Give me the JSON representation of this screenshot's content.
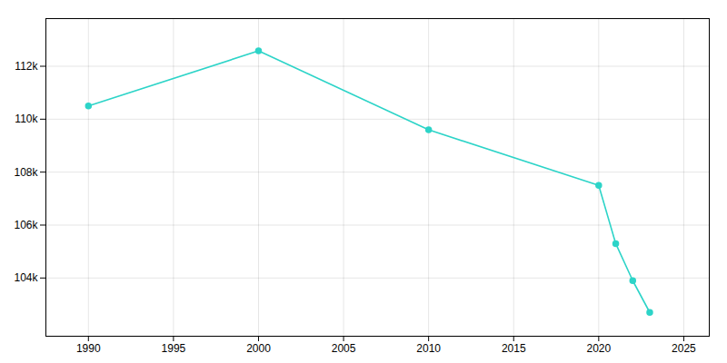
{
  "chart_data": {
    "type": "line",
    "x": [
      1990,
      2000,
      2010,
      2020,
      2021,
      2022,
      2023
    ],
    "values": [
      110500,
      112580,
      109600,
      107500,
      105300,
      103900,
      102700
    ],
    "color": "#2dd4c8",
    "xlim": [
      1987.5,
      2026.5
    ],
    "ylim": [
      101800,
      113800
    ],
    "xticks": [
      1990,
      1995,
      2000,
      2005,
      2010,
      2015,
      2020,
      2025
    ],
    "yticks": [
      {
        "value": 104000,
        "label": "104k"
      },
      {
        "value": 106000,
        "label": "106k"
      },
      {
        "value": 108000,
        "label": "108k"
      },
      {
        "value": 110000,
        "label": "110k"
      },
      {
        "value": 112000,
        "label": "112k"
      }
    ],
    "grid": true,
    "marker": "circle",
    "line_style": "solid"
  }
}
